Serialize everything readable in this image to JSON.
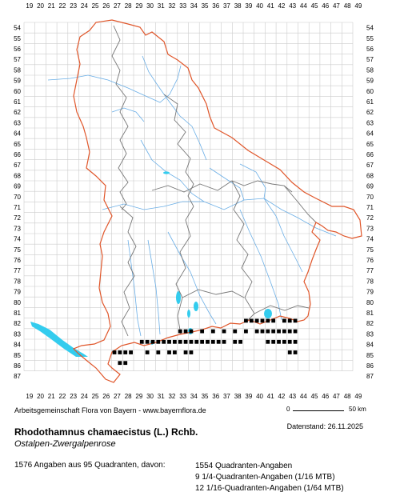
{
  "map": {
    "x_labels": [
      "19",
      "20",
      "21",
      "22",
      "23",
      "24",
      "25",
      "26",
      "27",
      "28",
      "29",
      "30",
      "31",
      "32",
      "33",
      "34",
      "35",
      "36",
      "37",
      "38",
      "39",
      "40",
      "41",
      "42",
      "43",
      "44",
      "45",
      "46",
      "47",
      "48",
      "49"
    ],
    "y_labels": [
      "54",
      "55",
      "56",
      "57",
      "58",
      "59",
      "60",
      "61",
      "62",
      "63",
      "64",
      "65",
      "66",
      "67",
      "68",
      "69",
      "70",
      "71",
      "72",
      "73",
      "74",
      "75",
      "76",
      "77",
      "78",
      "79",
      "80",
      "81",
      "82",
      "83",
      "84",
      "85",
      "86",
      "87"
    ],
    "colors": {
      "grid": "#cccccc",
      "border": "#e0562a",
      "district": "#777777",
      "river": "#6aaee6",
      "lake": "#33ccee",
      "occurrence": "#000000"
    },
    "occurrences": [
      [
        39,
        82
      ],
      [
        39.5,
        82
      ],
      [
        40,
        82
      ],
      [
        40.5,
        82
      ],
      [
        41,
        82
      ],
      [
        41.5,
        82
      ],
      [
        42.5,
        82
      ],
      [
        43,
        82
      ],
      [
        43.5,
        82
      ],
      [
        39,
        83
      ],
      [
        40,
        83
      ],
      [
        40.5,
        83
      ],
      [
        41,
        83
      ],
      [
        41.5,
        83
      ],
      [
        42,
        83
      ],
      [
        42.5,
        83
      ],
      [
        43,
        83
      ],
      [
        43.5,
        83
      ],
      [
        33,
        83
      ],
      [
        33.5,
        83
      ],
      [
        34,
        83
      ],
      [
        35,
        83
      ],
      [
        36,
        83
      ],
      [
        37,
        83
      ],
      [
        38,
        83
      ],
      [
        29.5,
        84
      ],
      [
        30,
        84
      ],
      [
        30.5,
        84
      ],
      [
        31,
        84
      ],
      [
        31.5,
        84
      ],
      [
        32,
        84
      ],
      [
        32.5,
        84
      ],
      [
        33,
        84
      ],
      [
        33.5,
        84
      ],
      [
        34,
        84
      ],
      [
        34.5,
        84
      ],
      [
        35,
        84
      ],
      [
        35.5,
        84
      ],
      [
        36,
        84
      ],
      [
        36.5,
        84
      ],
      [
        37,
        84
      ],
      [
        38,
        84
      ],
      [
        38.5,
        84
      ],
      [
        41,
        84
      ],
      [
        41.5,
        84
      ],
      [
        42,
        84
      ],
      [
        42.5,
        84
      ],
      [
        43,
        84
      ],
      [
        43.5,
        84
      ],
      [
        30,
        85
      ],
      [
        31,
        85
      ],
      [
        32,
        85
      ],
      [
        32.5,
        85
      ],
      [
        33.5,
        85
      ],
      [
        34,
        85
      ],
      [
        43,
        85
      ],
      [
        43.5,
        85
      ],
      [
        27,
        85
      ],
      [
        27.5,
        85
      ],
      [
        28,
        85
      ],
      [
        28.5,
        85
      ],
      [
        27.5,
        86
      ],
      [
        28,
        86
      ]
    ]
  },
  "credit": "Arbeitsgemeinschaft Flora von Bayern - www.bayernflora.de",
  "scale": {
    "start": "0",
    "end": "50 km"
  },
  "date_label": "Datenstand: 26.11.2025",
  "species": {
    "scientific": "Rhodothamnus chamaecistus (L.) Rchb.",
    "common": "Ostalpen-Zwergalpenrose"
  },
  "summary": "1576 Angaben aus 95 Quadranten, davon:",
  "stats": [
    "1554 Quadranten-Angaben",
    "9 1/4-Quadranten-Angaben (1/16 MTB)",
    "12 1/16-Quadranten-Angaben (1/64 MTB)"
  ]
}
